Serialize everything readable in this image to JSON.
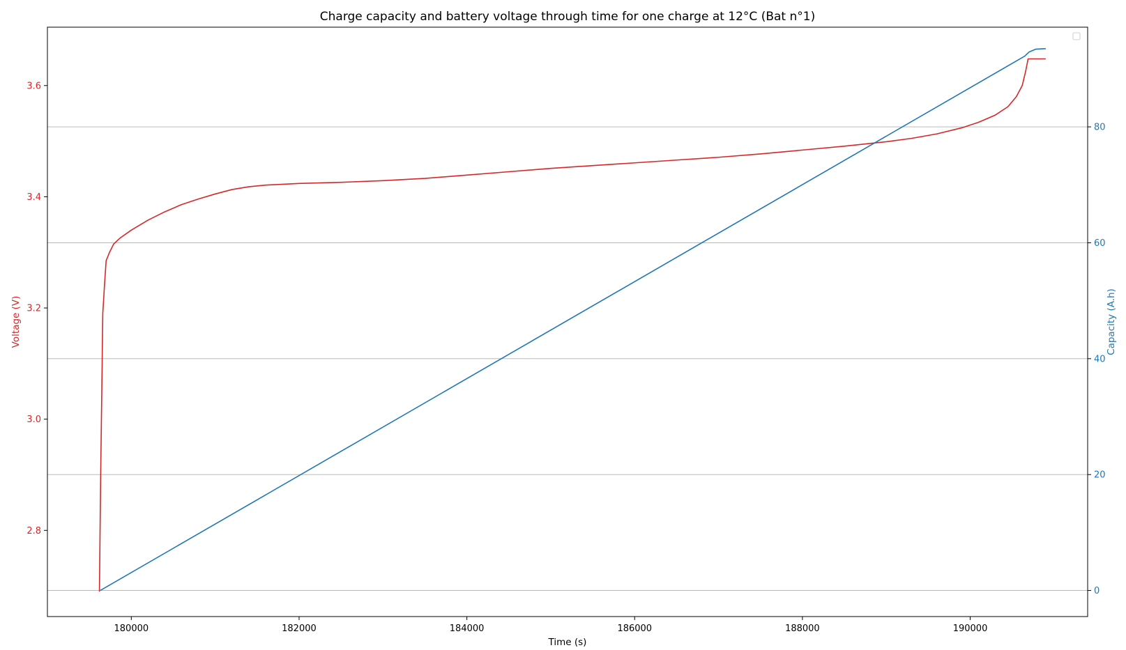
{
  "chart_data": {
    "type": "line",
    "title": "Charge capacity and battery voltage through time for one charge at 12°C (Bat n°1)",
    "xlabel": "Time (s)",
    "ylabel_left": "Voltage (V)",
    "ylabel_right": "Capacity (A.h)",
    "xlim": [
      179000,
      191400
    ],
    "ylim_left": [
      2.645,
      3.705
    ],
    "ylim_right": [
      -4.5,
      97.2
    ],
    "x_ticks": [
      180000,
      182000,
      184000,
      186000,
      188000,
      190000
    ],
    "y_left_ticks": [
      2.8,
      3.0,
      3.2,
      3.4,
      3.6
    ],
    "y_right_ticks": [
      0,
      20,
      40,
      60,
      80
    ],
    "grid": "horizontal, right axis",
    "legend": "top-right (empty)",
    "colors": {
      "voltage": "#d62728",
      "capacity": "#1f77b4"
    },
    "series": [
      {
        "axis": "left",
        "color": "#d62728",
        "points": [
          [
            179620,
            2.69
          ],
          [
            179635,
            2.9
          ],
          [
            179650,
            3.07
          ],
          [
            179660,
            3.19
          ],
          [
            179680,
            3.24
          ],
          [
            179700,
            3.285
          ],
          [
            179740,
            3.3
          ],
          [
            179790,
            3.315
          ],
          [
            179860,
            3.325
          ],
          [
            180000,
            3.34
          ],
          [
            180200,
            3.358
          ],
          [
            180400,
            3.373
          ],
          [
            180600,
            3.386
          ],
          [
            180800,
            3.396
          ],
          [
            181000,
            3.405
          ],
          [
            181200,
            3.413
          ],
          [
            181400,
            3.418
          ],
          [
            181600,
            3.421
          ],
          [
            182000,
            3.424
          ],
          [
            182500,
            3.426
          ],
          [
            183000,
            3.429
          ],
          [
            183500,
            3.433
          ],
          [
            184000,
            3.439
          ],
          [
            184500,
            3.445
          ],
          [
            185000,
            3.451
          ],
          [
            185500,
            3.456
          ],
          [
            186000,
            3.461
          ],
          [
            186500,
            3.466
          ],
          [
            187000,
            3.471
          ],
          [
            187500,
            3.477
          ],
          [
            188000,
            3.484
          ],
          [
            188500,
            3.491
          ],
          [
            189000,
            3.499
          ],
          [
            189300,
            3.505
          ],
          [
            189600,
            3.513
          ],
          [
            189900,
            3.524
          ],
          [
            190100,
            3.534
          ],
          [
            190300,
            3.547
          ],
          [
            190450,
            3.562
          ],
          [
            190550,
            3.58
          ],
          [
            190620,
            3.6
          ],
          [
            190660,
            3.625
          ],
          [
            190690,
            3.648
          ],
          [
            190900,
            3.648
          ]
        ]
      },
      {
        "axis": "right",
        "color": "#1f77b4",
        "points": [
          [
            179630,
            0
          ],
          [
            190650,
            92.2
          ],
          [
            190700,
            92.9
          ],
          [
            190780,
            93.4
          ],
          [
            190900,
            93.5
          ]
        ]
      }
    ]
  }
}
